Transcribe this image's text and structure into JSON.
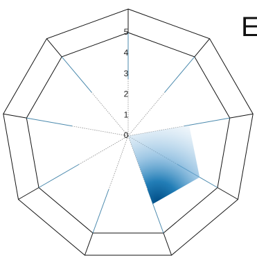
{
  "chart_data": {
    "type": "radar",
    "visible_title_fragment": "E",
    "radial_axis": {
      "min": 0,
      "max": 5,
      "tick_labels": [
        "0",
        "1",
        "2",
        "3",
        "4",
        "5"
      ]
    },
    "spoke_count": 9,
    "shape": "nonagon",
    "series": [
      {
        "values": [
          0,
          0,
          3,
          4,
          3.5,
          0,
          0,
          0,
          0
        ],
        "fill": "density-gradient"
      }
    ],
    "colors": {
      "grid": "#111111",
      "spoke": "#4a89ad",
      "fill_dark": "#0a5f99",
      "fill_light": "#dbe9f4"
    }
  }
}
